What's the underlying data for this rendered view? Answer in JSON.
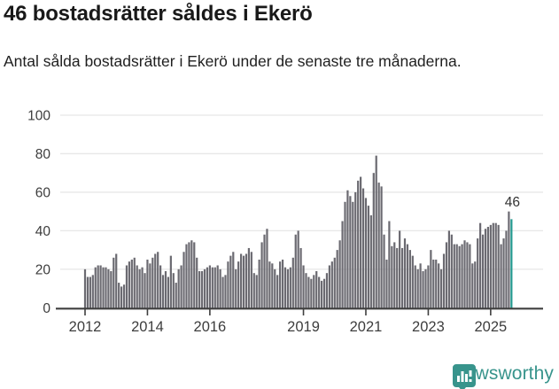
{
  "header": {
    "title": "46 bostadsrätter såldes i Ekerö",
    "subtitle": "Antal sålda bostadsrätter i Ekerö under de senaste tre månaderna."
  },
  "chart_data": {
    "type": "bar",
    "title": "46 bostadsrätter såldes i Ekerö",
    "xlabel": "",
    "ylabel": "",
    "ylim": [
      0,
      100
    ],
    "grid": true,
    "legend": "none",
    "frequency": "monthly",
    "start_month": "2012-01",
    "end_month": "2025-09",
    "y_tick_labels": [
      "0",
      "20",
      "40",
      "60",
      "80",
      "100"
    ],
    "y_ticks": [
      0,
      20,
      40,
      60,
      80,
      100
    ],
    "x_tick_labels": [
      "2012",
      "2014",
      "2016",
      "2019",
      "2021",
      "2023",
      "2025"
    ],
    "x_tick_years": [
      2012,
      2014,
      2016,
      2019,
      2021,
      2023,
      2025
    ],
    "values": [
      20,
      16,
      16,
      17,
      21,
      22,
      22,
      21,
      21,
      20,
      19,
      26,
      28,
      13,
      11,
      12,
      22,
      24,
      25,
      26,
      22,
      20,
      21,
      18,
      25,
      23,
      26,
      28,
      29,
      22,
      17,
      19,
      16,
      27,
      18,
      13,
      20,
      22,
      29,
      33,
      34,
      35,
      34,
      26,
      19,
      19,
      20,
      21,
      22,
      21,
      21,
      22,
      20,
      16,
      17,
      24,
      27,
      29,
      20,
      24,
      28,
      27,
      28,
      31,
      29,
      18,
      17,
      25,
      34,
      38,
      41,
      24,
      23,
      20,
      17,
      24,
      25,
      21,
      20,
      21,
      26,
      38,
      40,
      31,
      22,
      18,
      16,
      15,
      17,
      19,
      16,
      14,
      15,
      18,
      22,
      24,
      26,
      30,
      35,
      45,
      55,
      61,
      58,
      55,
      60,
      66,
      68,
      62,
      57,
      53,
      48,
      70,
      79,
      65,
      63,
      38,
      25,
      45,
      32,
      34,
      31,
      40,
      31,
      36,
      33,
      30,
      27,
      22,
      20,
      23,
      19,
      20,
      22,
      30,
      25,
      25,
      23,
      20,
      28,
      34,
      40,
      38,
      33,
      33,
      32,
      33,
      35,
      34,
      33,
      23,
      24,
      36,
      44,
      38,
      41,
      42,
      43,
      44,
      44,
      43,
      33,
      36,
      40,
      50,
      46
    ],
    "highlight_last_bar": true,
    "last_value_label": "46",
    "bar_color": "#6b6a71",
    "highlight_color": "#23998f",
    "axis_color": "#3f3f3f",
    "gridline_color": "#e7e7e7",
    "tick_label_color": "#3d3d3d",
    "annotation_color": "#333333"
  },
  "footer": {
    "brand": "Newsworthy",
    "brand_color": "#38948c",
    "logo_icon": "newsworthy-speech-bubble-bar-chart-icon"
  }
}
